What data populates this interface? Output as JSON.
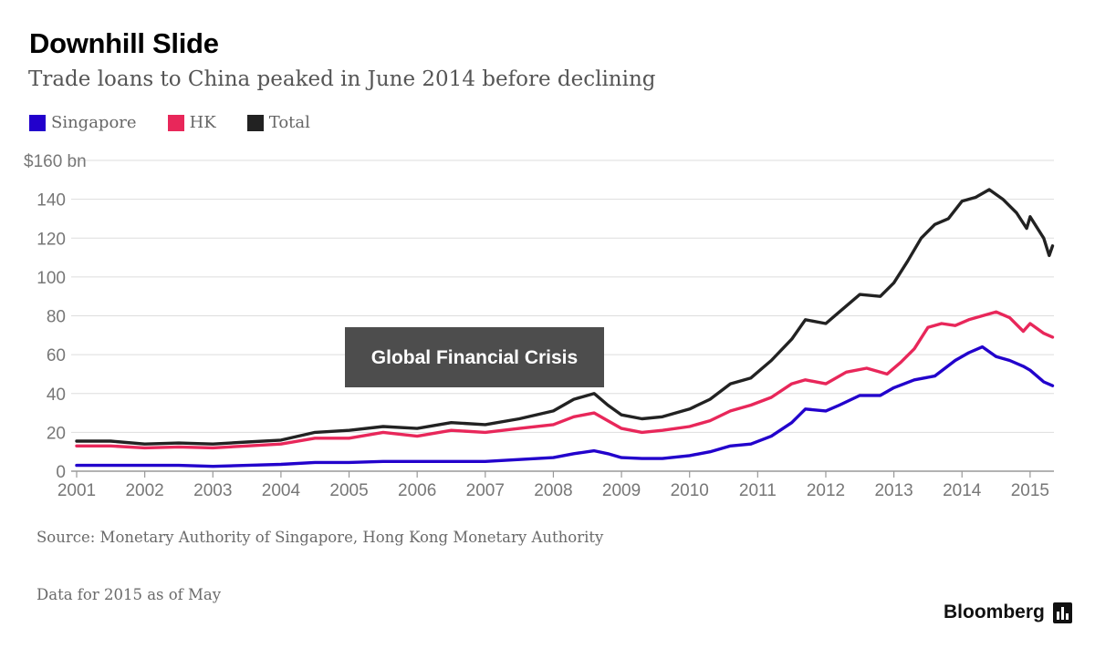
{
  "header": {
    "title": "Downhill Slide",
    "subtitle": "Trade loans to China peaked in June 2014 before declining"
  },
  "footer": {
    "source": "Source: Monetary Authority of Singapore, Hong Kong Monetary Authority",
    "note": "Data for 2015 as of May",
    "brand": "Bloomberg"
  },
  "chart_data": {
    "type": "line",
    "title": "Downhill Slide",
    "subtitle": "Trade loans to China peaked in June 2014 before declining",
    "xlabel": "",
    "ylabel": "",
    "ylim": [
      0,
      160
    ],
    "yticks": [
      "0",
      "20",
      "40",
      "60",
      "80",
      "100",
      "120",
      "140",
      "$160 bn"
    ],
    "xticks": [
      "2001",
      "2002",
      "2003",
      "2004",
      "2005",
      "2006",
      "2007",
      "2008",
      "2009",
      "2010",
      "2011",
      "2012",
      "2013",
      "2014",
      "2015"
    ],
    "grid": true,
    "legend_position": "top-left",
    "annotation": {
      "text": "Global Financial Crisis",
      "x": 2006.8
    },
    "series": [
      {
        "name": "Singapore",
        "color": "#2200cc",
        "x": [
          2001.0,
          2001.5,
          2002.0,
          2002.5,
          2003.0,
          2003.5,
          2004.0,
          2004.5,
          2005.0,
          2005.5,
          2006.0,
          2006.5,
          2007.0,
          2007.5,
          2008.0,
          2008.3,
          2008.6,
          2008.8,
          2009.0,
          2009.3,
          2009.6,
          2010.0,
          2010.3,
          2010.6,
          2010.9,
          2011.2,
          2011.5,
          2011.7,
          2012.0,
          2012.2,
          2012.5,
          2012.8,
          2013.0,
          2013.3,
          2013.6,
          2013.9,
          2014.1,
          2014.3,
          2014.5,
          2014.7,
          2014.9,
          2015.0,
          2015.2,
          2015.33
        ],
        "y": [
          3,
          3,
          3,
          3,
          2.5,
          3,
          3.5,
          4.5,
          4.5,
          5,
          5,
          5,
          5,
          6,
          7,
          9,
          10.5,
          9,
          7,
          6.5,
          6.5,
          8,
          10,
          13,
          14,
          18,
          25,
          32,
          31,
          34,
          39,
          39,
          43,
          47,
          49,
          57,
          61,
          64,
          59,
          57,
          54,
          52,
          46,
          44
        ]
      },
      {
        "name": "HK",
        "color": "#e8275a",
        "x": [
          2001.0,
          2001.5,
          2002.0,
          2002.5,
          2003.0,
          2003.5,
          2004.0,
          2004.5,
          2005.0,
          2005.5,
          2006.0,
          2006.5,
          2007.0,
          2007.5,
          2008.0,
          2008.3,
          2008.6,
          2008.8,
          2009.0,
          2009.3,
          2009.6,
          2010.0,
          2010.3,
          2010.6,
          2010.9,
          2011.2,
          2011.5,
          2011.7,
          2012.0,
          2012.3,
          2012.6,
          2012.9,
          2013.1,
          2013.3,
          2013.5,
          2013.7,
          2013.9,
          2014.1,
          2014.3,
          2014.5,
          2014.7,
          2014.9,
          2015.0,
          2015.2,
          2015.33
        ],
        "y": [
          13,
          13,
          12,
          12.5,
          12,
          13,
          14,
          17,
          17,
          20,
          18,
          21,
          20,
          22,
          24,
          28,
          30,
          26,
          22,
          20,
          21,
          23,
          26,
          31,
          34,
          38,
          45,
          47,
          45,
          51,
          53,
          50,
          56,
          63,
          74,
          76,
          75,
          78,
          80,
          82,
          79,
          72,
          76,
          71,
          69
        ]
      },
      {
        "name": "Total",
        "color": "#222222",
        "x": [
          2001.0,
          2001.5,
          2002.0,
          2002.5,
          2003.0,
          2003.5,
          2004.0,
          2004.5,
          2005.0,
          2005.5,
          2006.0,
          2006.5,
          2007.0,
          2007.5,
          2008.0,
          2008.3,
          2008.6,
          2008.8,
          2009.0,
          2009.3,
          2009.6,
          2010.0,
          2010.3,
          2010.6,
          2010.9,
          2011.2,
          2011.5,
          2011.7,
          2012.0,
          2012.2,
          2012.5,
          2012.8,
          2013.0,
          2013.2,
          2013.4,
          2013.6,
          2013.8,
          2014.0,
          2014.2,
          2014.4,
          2014.6,
          2014.8,
          2014.95,
          2015.0,
          2015.2,
          2015.28,
          2015.33
        ],
        "y": [
          15.5,
          15.5,
          14,
          14.5,
          14,
          15,
          16,
          20,
          21,
          23,
          22,
          25,
          24,
          27,
          31,
          37,
          40,
          34,
          29,
          27,
          28,
          32,
          37,
          45,
          48,
          57,
          68,
          78,
          76,
          82,
          91,
          90,
          97,
          108,
          120,
          127,
          130,
          139,
          141,
          145,
          140,
          133,
          125,
          131,
          120,
          111,
          116
        ]
      }
    ]
  }
}
